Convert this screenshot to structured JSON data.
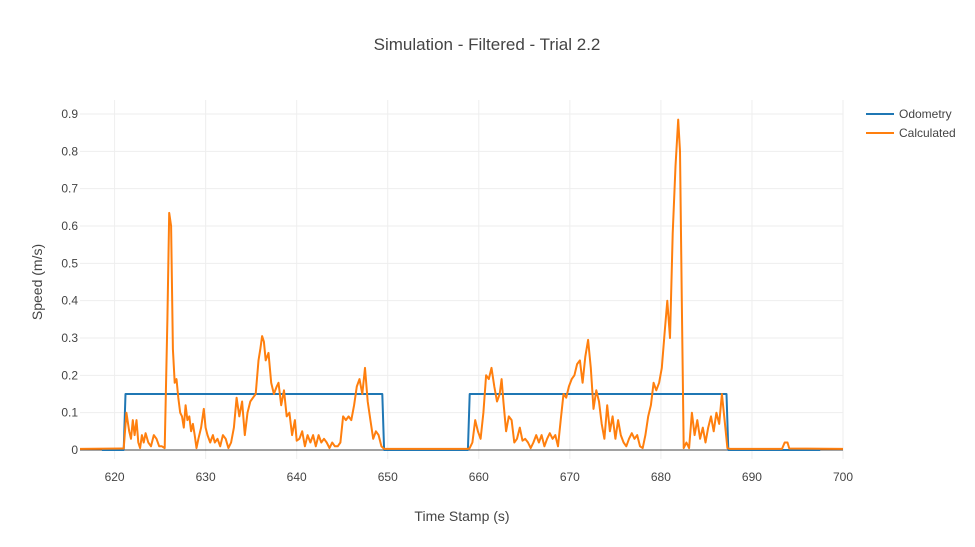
{
  "chart_data": {
    "type": "line",
    "title": "Simulation - Filtered - Trial 2.2",
    "xlabel": "Time Stamp (s)",
    "ylabel": "Speed (m/s)",
    "xlim": [
      616.2,
      700
    ],
    "ylim": [
      0,
      0.9
    ],
    "x_ticks": [
      "620",
      "630",
      "640",
      "650",
      "660",
      "670",
      "680",
      "690",
      "700"
    ],
    "y_ticks": [
      "0",
      "0.1",
      "0.2",
      "0.3",
      "0.4",
      "0.5",
      "0.6",
      "0.7",
      "0.8",
      "0.9"
    ],
    "grid": true,
    "legend_position": "top-right",
    "series": [
      {
        "name": "Odometry",
        "color": "#1f77b4",
        "points": [
          [
            618.6,
            0
          ],
          [
            621.0,
            0
          ],
          [
            621.2,
            0.15
          ],
          [
            649.4,
            0.15
          ],
          [
            649.6,
            0
          ],
          [
            658.8,
            0
          ],
          [
            659.0,
            0.15
          ],
          [
            687.2,
            0.15
          ],
          [
            687.4,
            0
          ],
          [
            697.5,
            0
          ]
        ]
      },
      {
        "name": "Calculated",
        "color": "#ff7f0e",
        "points": [
          [
            616.2,
            0.003
          ],
          [
            620.8,
            0.004
          ],
          [
            621.0,
            0.004
          ],
          [
            621.3,
            0.1
          ],
          [
            621.6,
            0.05
          ],
          [
            621.8,
            0.03
          ],
          [
            622.0,
            0.08
          ],
          [
            622.2,
            0.04
          ],
          [
            622.4,
            0.08
          ],
          [
            622.6,
            0.02
          ],
          [
            622.8,
            0.005
          ],
          [
            623.0,
            0.04
          ],
          [
            623.2,
            0.02
          ],
          [
            623.4,
            0.045
          ],
          [
            623.7,
            0.02
          ],
          [
            624.0,
            0.01
          ],
          [
            624.3,
            0.04
          ],
          [
            624.6,
            0.03
          ],
          [
            624.9,
            0.01
          ],
          [
            625.2,
            0.01
          ],
          [
            625.5,
            0.005
          ],
          [
            625.8,
            0.35
          ],
          [
            626.0,
            0.635
          ],
          [
            626.2,
            0.6
          ],
          [
            626.4,
            0.27
          ],
          [
            626.6,
            0.18
          ],
          [
            626.8,
            0.19
          ],
          [
            627.0,
            0.14
          ],
          [
            627.2,
            0.1
          ],
          [
            627.4,
            0.09
          ],
          [
            627.6,
            0.06
          ],
          [
            627.8,
            0.12
          ],
          [
            628.0,
            0.08
          ],
          [
            628.2,
            0.09
          ],
          [
            628.4,
            0.05
          ],
          [
            628.6,
            0.07
          ],
          [
            628.8,
            0.04
          ],
          [
            629.0,
            0.005
          ],
          [
            629.2,
            0.03
          ],
          [
            629.5,
            0.06
          ],
          [
            629.8,
            0.11
          ],
          [
            630.0,
            0.06
          ],
          [
            630.2,
            0.04
          ],
          [
            630.5,
            0.02
          ],
          [
            630.8,
            0.04
          ],
          [
            631.0,
            0.02
          ],
          [
            631.3,
            0.03
          ],
          [
            631.6,
            0.01
          ],
          [
            631.9,
            0.04
          ],
          [
            632.2,
            0.03
          ],
          [
            632.5,
            0.005
          ],
          [
            632.8,
            0.02
          ],
          [
            633.1,
            0.06
          ],
          [
            633.4,
            0.14
          ],
          [
            633.7,
            0.09
          ],
          [
            634.0,
            0.13
          ],
          [
            634.3,
            0.04
          ],
          [
            634.6,
            0.1
          ],
          [
            634.9,
            0.13
          ],
          [
            635.2,
            0.14
          ],
          [
            635.5,
            0.15
          ],
          [
            635.8,
            0.24
          ],
          [
            636.0,
            0.27
          ],
          [
            636.2,
            0.305
          ],
          [
            636.4,
            0.29
          ],
          [
            636.6,
            0.24
          ],
          [
            636.9,
            0.26
          ],
          [
            637.2,
            0.18
          ],
          [
            637.5,
            0.15
          ],
          [
            637.8,
            0.17
          ],
          [
            638.0,
            0.18
          ],
          [
            638.3,
            0.12
          ],
          [
            638.6,
            0.16
          ],
          [
            638.9,
            0.09
          ],
          [
            639.2,
            0.1
          ],
          [
            639.5,
            0.04
          ],
          [
            639.8,
            0.08
          ],
          [
            640.0,
            0.025
          ],
          [
            640.3,
            0.03
          ],
          [
            640.6,
            0.05
          ],
          [
            640.9,
            0.01
          ],
          [
            641.2,
            0.04
          ],
          [
            641.5,
            0.02
          ],
          [
            641.8,
            0.04
          ],
          [
            642.1,
            0.01
          ],
          [
            642.4,
            0.04
          ],
          [
            642.7,
            0.02
          ],
          [
            643.0,
            0.03
          ],
          [
            643.3,
            0.02
          ],
          [
            643.6,
            0.005
          ],
          [
            643.9,
            0.02
          ],
          [
            644.2,
            0.01
          ],
          [
            644.5,
            0.01
          ],
          [
            644.8,
            0.02
          ],
          [
            645.1,
            0.09
          ],
          [
            645.4,
            0.08
          ],
          [
            645.7,
            0.09
          ],
          [
            646.0,
            0.08
          ],
          [
            646.3,
            0.12
          ],
          [
            646.6,
            0.17
          ],
          [
            646.9,
            0.19
          ],
          [
            647.2,
            0.15
          ],
          [
            647.5,
            0.22
          ],
          [
            647.8,
            0.13
          ],
          [
            648.1,
            0.08
          ],
          [
            648.4,
            0.03
          ],
          [
            648.7,
            0.05
          ],
          [
            649.0,
            0.04
          ],
          [
            649.3,
            0.01
          ],
          [
            649.6,
            0.003
          ],
          [
            658.8,
            0.003
          ],
          [
            659.0,
            0.005
          ],
          [
            659.3,
            0.02
          ],
          [
            659.6,
            0.08
          ],
          [
            659.9,
            0.05
          ],
          [
            660.2,
            0.03
          ],
          [
            660.5,
            0.1
          ],
          [
            660.8,
            0.2
          ],
          [
            661.1,
            0.19
          ],
          [
            661.4,
            0.22
          ],
          [
            661.7,
            0.17
          ],
          [
            662.0,
            0.13
          ],
          [
            662.3,
            0.15
          ],
          [
            662.5,
            0.19
          ],
          [
            662.7,
            0.13
          ],
          [
            663.0,
            0.05
          ],
          [
            663.3,
            0.09
          ],
          [
            663.6,
            0.08
          ],
          [
            663.9,
            0.02
          ],
          [
            664.2,
            0.03
          ],
          [
            664.5,
            0.06
          ],
          [
            664.8,
            0.025
          ],
          [
            665.1,
            0.03
          ],
          [
            665.4,
            0.02
          ],
          [
            665.7,
            0.005
          ],
          [
            666.0,
            0.02
          ],
          [
            666.3,
            0.04
          ],
          [
            666.6,
            0.02
          ],
          [
            666.9,
            0.04
          ],
          [
            667.2,
            0.01
          ],
          [
            667.5,
            0.03
          ],
          [
            667.8,
            0.045
          ],
          [
            668.1,
            0.03
          ],
          [
            668.4,
            0.04
          ],
          [
            668.7,
            0.01
          ],
          [
            669.0,
            0.08
          ],
          [
            669.3,
            0.15
          ],
          [
            669.6,
            0.14
          ],
          [
            669.9,
            0.17
          ],
          [
            670.2,
            0.19
          ],
          [
            670.5,
            0.2
          ],
          [
            670.8,
            0.23
          ],
          [
            671.1,
            0.24
          ],
          [
            671.4,
            0.18
          ],
          [
            671.7,
            0.25
          ],
          [
            672.0,
            0.295
          ],
          [
            672.3,
            0.22
          ],
          [
            672.6,
            0.11
          ],
          [
            672.9,
            0.16
          ],
          [
            673.2,
            0.13
          ],
          [
            673.5,
            0.07
          ],
          [
            673.8,
            0.03
          ],
          [
            674.1,
            0.12
          ],
          [
            674.4,
            0.05
          ],
          [
            674.7,
            0.09
          ],
          [
            675.0,
            0.03
          ],
          [
            675.3,
            0.08
          ],
          [
            675.6,
            0.04
          ],
          [
            675.9,
            0.02
          ],
          [
            676.2,
            0.01
          ],
          [
            676.5,
            0.03
          ],
          [
            676.8,
            0.045
          ],
          [
            677.1,
            0.03
          ],
          [
            677.4,
            0.04
          ],
          [
            677.7,
            0.01
          ],
          [
            678.0,
            0.005
          ],
          [
            678.3,
            0.04
          ],
          [
            678.6,
            0.09
          ],
          [
            678.9,
            0.12
          ],
          [
            679.2,
            0.18
          ],
          [
            679.5,
            0.16
          ],
          [
            679.8,
            0.18
          ],
          [
            680.1,
            0.22
          ],
          [
            680.4,
            0.31
          ],
          [
            680.7,
            0.4
          ],
          [
            681.0,
            0.3
          ],
          [
            681.3,
            0.58
          ],
          [
            681.6,
            0.76
          ],
          [
            681.9,
            0.885
          ],
          [
            682.1,
            0.8
          ],
          [
            682.3,
            0.4
          ],
          [
            682.5,
            0.005
          ],
          [
            682.8,
            0.02
          ],
          [
            683.1,
            0.005
          ],
          [
            683.4,
            0.1
          ],
          [
            683.7,
            0.04
          ],
          [
            684.0,
            0.08
          ],
          [
            684.3,
            0.03
          ],
          [
            684.6,
            0.06
          ],
          [
            684.9,
            0.02
          ],
          [
            685.2,
            0.06
          ],
          [
            685.5,
            0.09
          ],
          [
            685.8,
            0.05
          ],
          [
            686.1,
            0.1
          ],
          [
            686.4,
            0.07
          ],
          [
            686.7,
            0.15
          ],
          [
            687.0,
            0.08
          ],
          [
            687.3,
            0.005
          ],
          [
            687.6,
            0.003
          ],
          [
            693.3,
            0.003
          ],
          [
            693.6,
            0.02
          ],
          [
            693.9,
            0.02
          ],
          [
            694.1,
            0.004
          ],
          [
            700.0,
            0.003
          ]
        ]
      }
    ]
  }
}
